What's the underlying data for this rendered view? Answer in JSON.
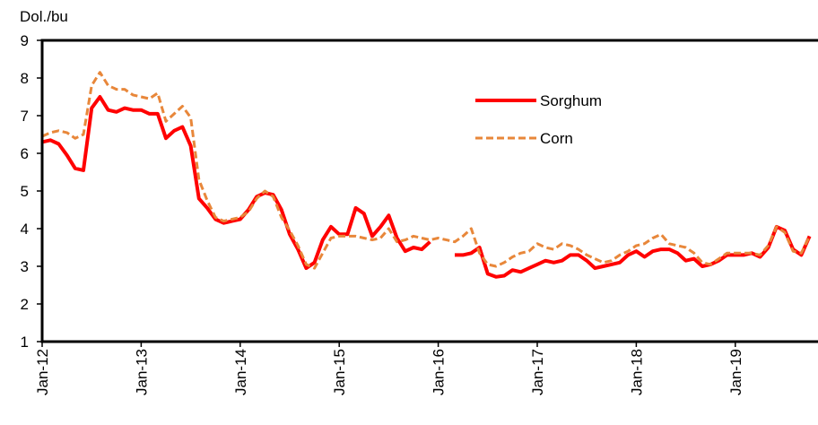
{
  "chart_data": {
    "type": "line",
    "y_label": "Dol./bu",
    "categories": [
      "Jan-12",
      null,
      null,
      null,
      null,
      null,
      null,
      null,
      null,
      null,
      null,
      null,
      "Jan-13",
      null,
      null,
      null,
      null,
      null,
      null,
      null,
      null,
      null,
      null,
      null,
      "Jan-14",
      null,
      null,
      null,
      null,
      null,
      null,
      null,
      null,
      null,
      null,
      null,
      "Jan-15",
      null,
      null,
      null,
      null,
      null,
      null,
      null,
      null,
      null,
      null,
      null,
      "Jan-16",
      null,
      null,
      null,
      null,
      null,
      null,
      null,
      null,
      null,
      null,
      null,
      "Jan-17",
      null,
      null,
      null,
      null,
      null,
      null,
      null,
      null,
      null,
      null,
      null,
      "Jan-18",
      null,
      null,
      null,
      null,
      null,
      null,
      null,
      null,
      null,
      null,
      null,
      "Jan-19",
      null,
      null,
      null,
      null,
      null,
      null,
      null,
      null,
      null
    ],
    "series": [
      {
        "name": "Sorghum",
        "color": "#ff0000",
        "dash": false,
        "values": [
          6.3,
          6.35,
          6.25,
          5.95,
          5.6,
          5.55,
          7.2,
          7.5,
          7.15,
          7.1,
          7.2,
          7.15,
          7.15,
          7.05,
          7.05,
          6.4,
          6.6,
          6.7,
          6.2,
          4.8,
          4.55,
          4.25,
          4.15,
          4.2,
          4.25,
          4.5,
          4.85,
          4.95,
          4.9,
          4.5,
          3.85,
          3.45,
          2.95,
          3.1,
          3.7,
          4.05,
          3.85,
          3.85,
          4.55,
          4.4,
          3.8,
          4.05,
          4.35,
          3.75,
          3.4,
          3.5,
          3.45,
          3.65,
          null,
          null,
          3.3,
          3.3,
          3.35,
          3.5,
          2.8,
          2.72,
          2.75,
          2.9,
          2.85,
          2.95,
          3.05,
          3.15,
          3.1,
          3.15,
          3.3,
          3.3,
          3.15,
          2.95,
          3.0,
          3.05,
          3.1,
          3.3,
          3.4,
          3.25,
          3.4,
          3.45,
          3.45,
          3.35,
          3.15,
          3.2,
          3.0,
          3.05,
          3.15,
          3.3,
          3.3,
          3.3,
          3.35,
          3.25,
          3.5,
          4.05,
          3.95,
          3.45,
          3.3,
          3.8
        ]
      },
      {
        "name": "Corn",
        "color": "#e8873a",
        "dash": true,
        "values": [
          6.45,
          6.55,
          6.6,
          6.55,
          6.4,
          6.5,
          7.8,
          8.15,
          7.8,
          7.7,
          7.7,
          7.55,
          7.5,
          7.45,
          7.6,
          6.85,
          7.05,
          7.25,
          6.95,
          5.3,
          4.75,
          4.3,
          4.2,
          4.25,
          4.3,
          4.45,
          4.8,
          5.0,
          4.85,
          4.3,
          3.95,
          3.55,
          3.05,
          2.95,
          3.35,
          3.75,
          3.8,
          3.8,
          3.8,
          3.75,
          3.7,
          3.75,
          4.0,
          3.65,
          3.7,
          3.8,
          3.75,
          3.7,
          3.75,
          3.7,
          3.65,
          3.8,
          4.0,
          3.35,
          3.05,
          3.0,
          3.1,
          3.25,
          3.35,
          3.4,
          3.6,
          3.5,
          3.45,
          3.6,
          3.55,
          3.45,
          3.3,
          3.2,
          3.1,
          3.15,
          3.3,
          3.4,
          3.55,
          3.6,
          3.75,
          3.85,
          3.6,
          3.55,
          3.5,
          3.35,
          3.1,
          3.05,
          3.2,
          3.35,
          3.35,
          3.35,
          3.35,
          3.3,
          3.55,
          4.05,
          3.9,
          3.4,
          3.35,
          3.8
        ]
      }
    ],
    "ylim": [
      1,
      9
    ],
    "yticks": [
      1,
      2,
      3,
      4,
      5,
      6,
      7,
      8,
      9
    ],
    "grid": false
  }
}
